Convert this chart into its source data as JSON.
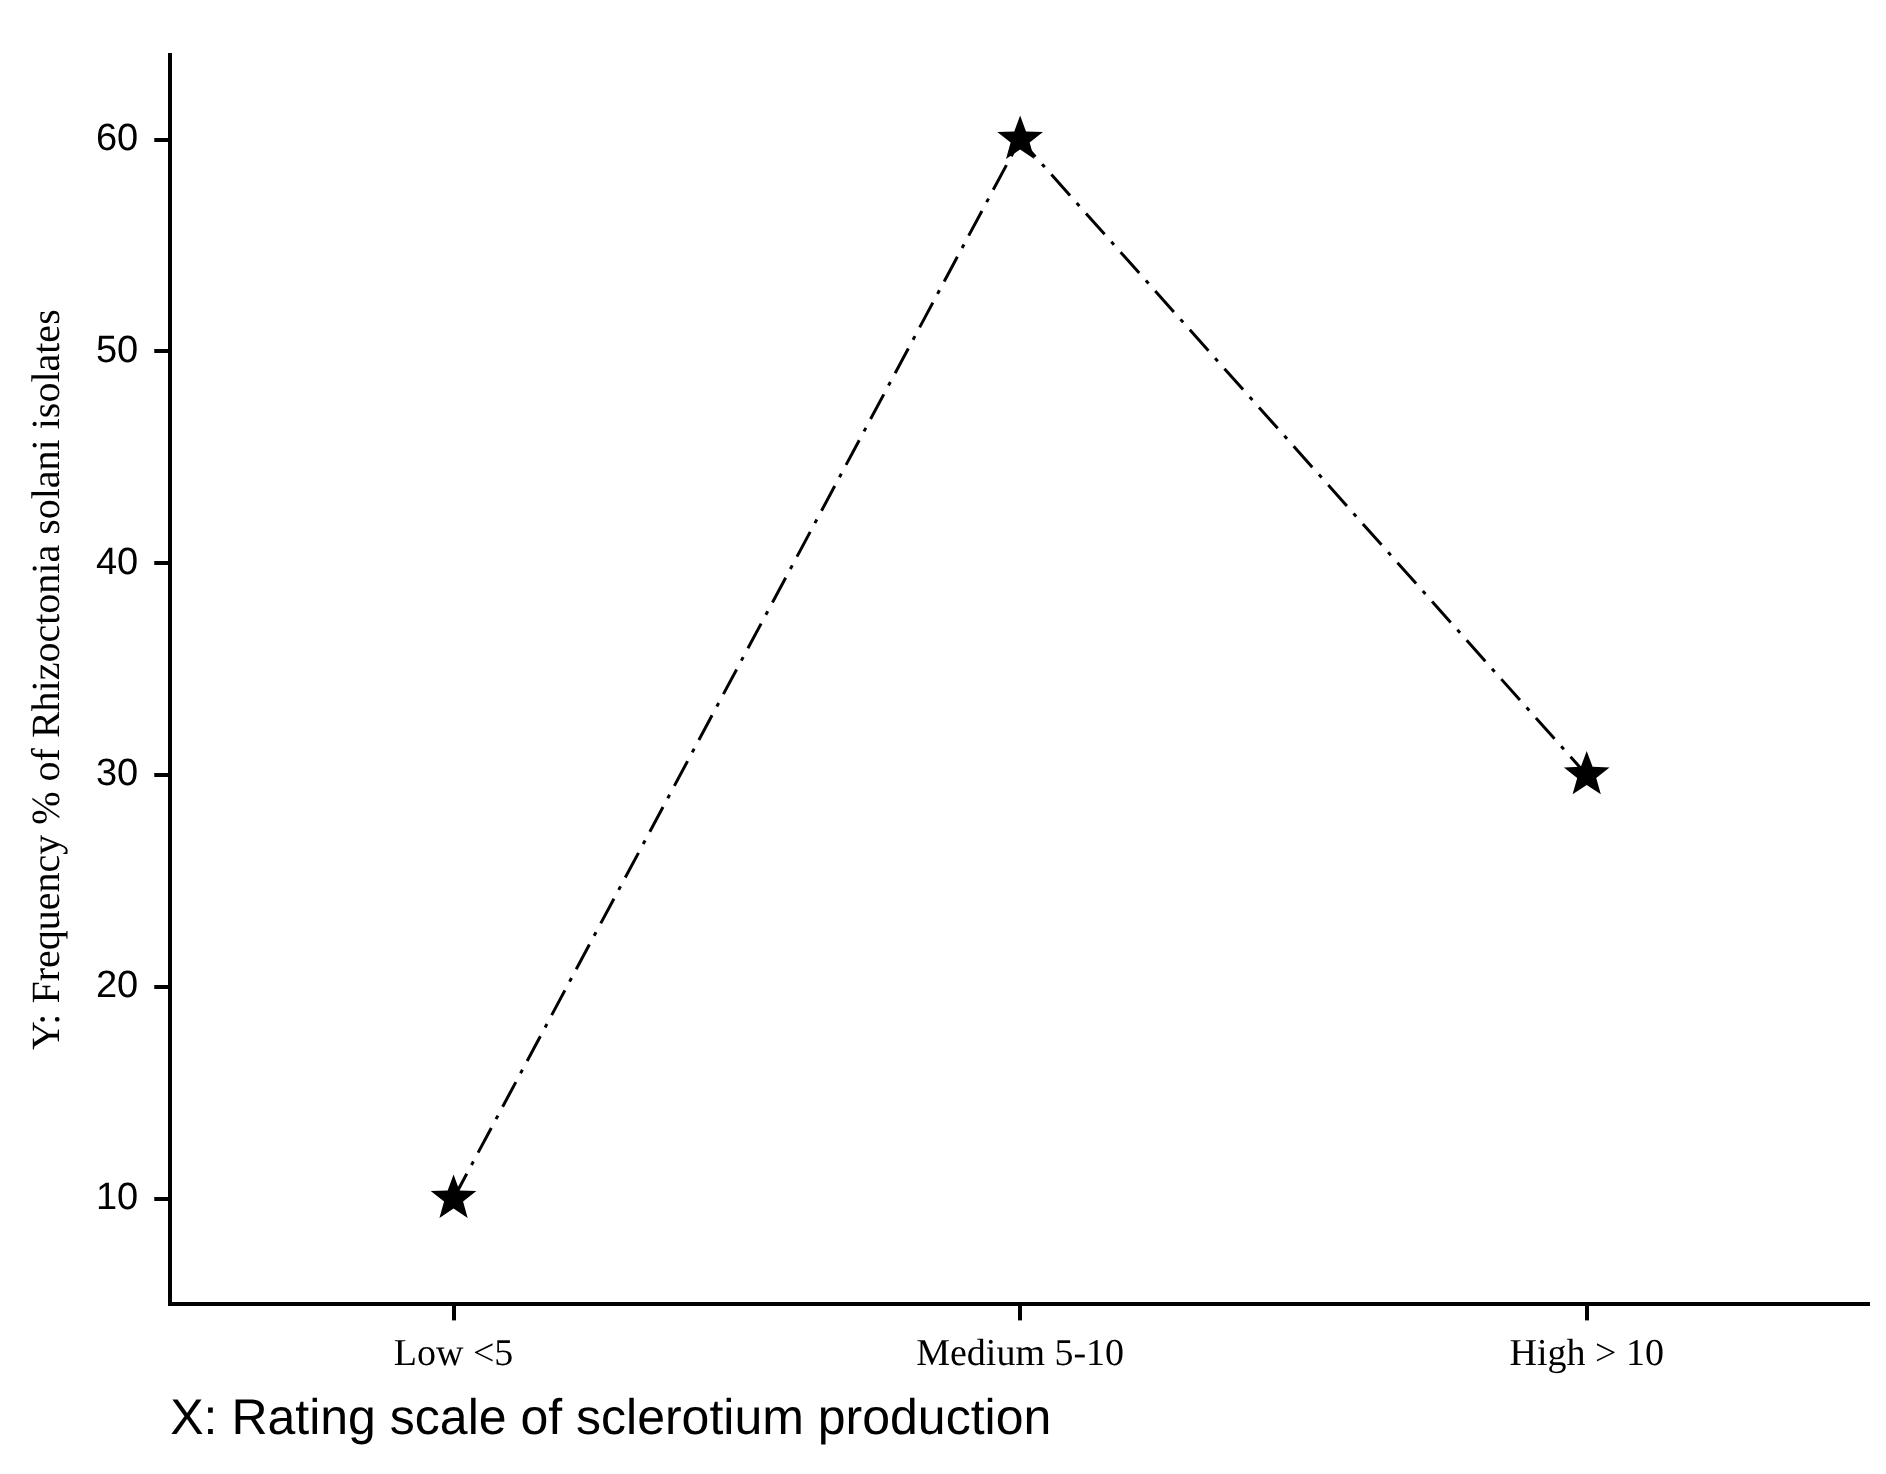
{
  "chart_data": {
    "type": "line",
    "xlabel": "X: Rating scale of sclerotium production",
    "ylabel": "Y: Frequency % of Rhizoctonia solani isolates",
    "categories": [
      "Low <5",
      "Medium 5-10",
      "High > 10"
    ],
    "series": [
      {
        "color": "#000000",
        "values": [
          10,
          60,
          30
        ]
      }
    ],
    "ylim": [
      5,
      64
    ],
    "yticks": [
      10,
      20,
      30,
      40,
      50,
      60
    ],
    "grid": false,
    "legend": false,
    "marker": "star",
    "line_style": "dashed"
  }
}
